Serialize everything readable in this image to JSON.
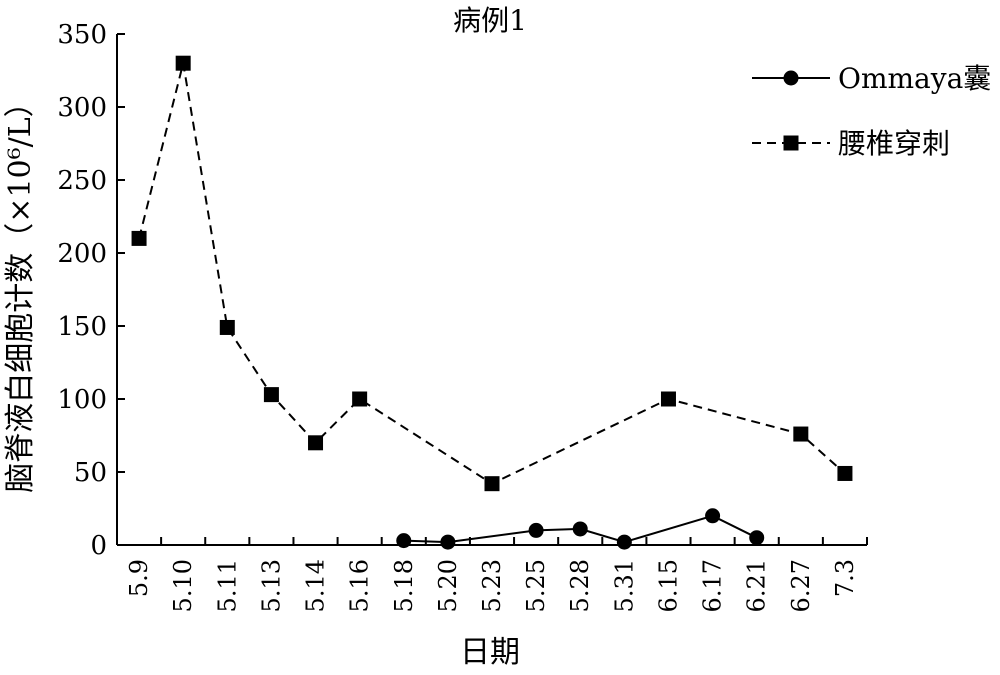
{
  "chart_data": {
    "type": "line",
    "title": "病例1",
    "xlabel": "日期",
    "ylabel": "脑脊液白细胞计数（×10⁶/L）",
    "categories": [
      "5.9",
      "5.10",
      "5.11",
      "5.13",
      "5.14",
      "5.16",
      "5.18",
      "5.20",
      "5.23",
      "5.25",
      "5.28",
      "5.31",
      "6.15",
      "6.17",
      "6.21",
      "6.27",
      "7.3"
    ],
    "ylim": [
      0,
      350
    ],
    "yticks": [
      0,
      50,
      100,
      150,
      200,
      250,
      300,
      350
    ],
    "legend_position": "top-right",
    "grid": false,
    "series": [
      {
        "name": "Ommaya囊",
        "marker": "circle",
        "line_style": "solid",
        "values": [
          null,
          null,
          null,
          null,
          null,
          null,
          3,
          2,
          null,
          10,
          11,
          2,
          null,
          20,
          5,
          null,
          null
        ]
      },
      {
        "name": "腰椎穿刺",
        "marker": "square",
        "line_style": "dashed",
        "values": [
          210,
          330,
          149,
          103,
          70,
          100,
          null,
          null,
          42,
          null,
          null,
          null,
          100,
          null,
          null,
          76,
          49
        ]
      }
    ]
  }
}
